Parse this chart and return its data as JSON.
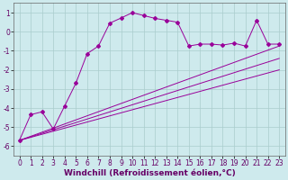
{
  "background_color": "#ceeaed",
  "grid_color": "#aacccc",
  "line_color": "#990099",
  "xlabel": "Windchill (Refroidissement éolien,°C)",
  "xlabel_fontsize": 6.5,
  "tick_fontsize": 5.5,
  "ylim": [
    -6.5,
    1.5
  ],
  "xlim": [
    -0.5,
    23.5
  ],
  "yticks": [
    -6,
    -5,
    -4,
    -3,
    -2,
    -1,
    0,
    1
  ],
  "xticks": [
    0,
    1,
    2,
    3,
    4,
    5,
    6,
    7,
    8,
    9,
    10,
    11,
    12,
    13,
    14,
    15,
    16,
    17,
    18,
    19,
    20,
    21,
    22,
    23
  ],
  "series_zigzag_x": [
    0,
    1,
    2,
    3,
    4,
    5,
    6,
    7,
    8,
    9,
    10,
    11,
    12,
    13,
    14,
    15,
    16,
    17,
    18,
    19,
    20,
    21,
    22,
    23
  ],
  "series_zigzag_y": [
    -5.7,
    -4.35,
    -4.2,
    -5.1,
    -3.9,
    -2.7,
    -1.15,
    -0.75,
    0.45,
    0.72,
    1.0,
    0.85,
    0.7,
    0.6,
    0.5,
    -0.75,
    -0.65,
    -0.65,
    -0.7,
    -0.6,
    -0.75,
    0.6,
    -0.65,
    -0.65
  ],
  "series_line1_x": [
    0,
    23
  ],
  "series_line1_y": [
    -5.7,
    -0.75
  ],
  "series_line2_x": [
    0,
    23
  ],
  "series_line2_y": [
    -5.7,
    -1.4
  ],
  "series_line3_x": [
    0,
    23
  ],
  "series_line3_y": [
    -5.7,
    -2.0
  ]
}
